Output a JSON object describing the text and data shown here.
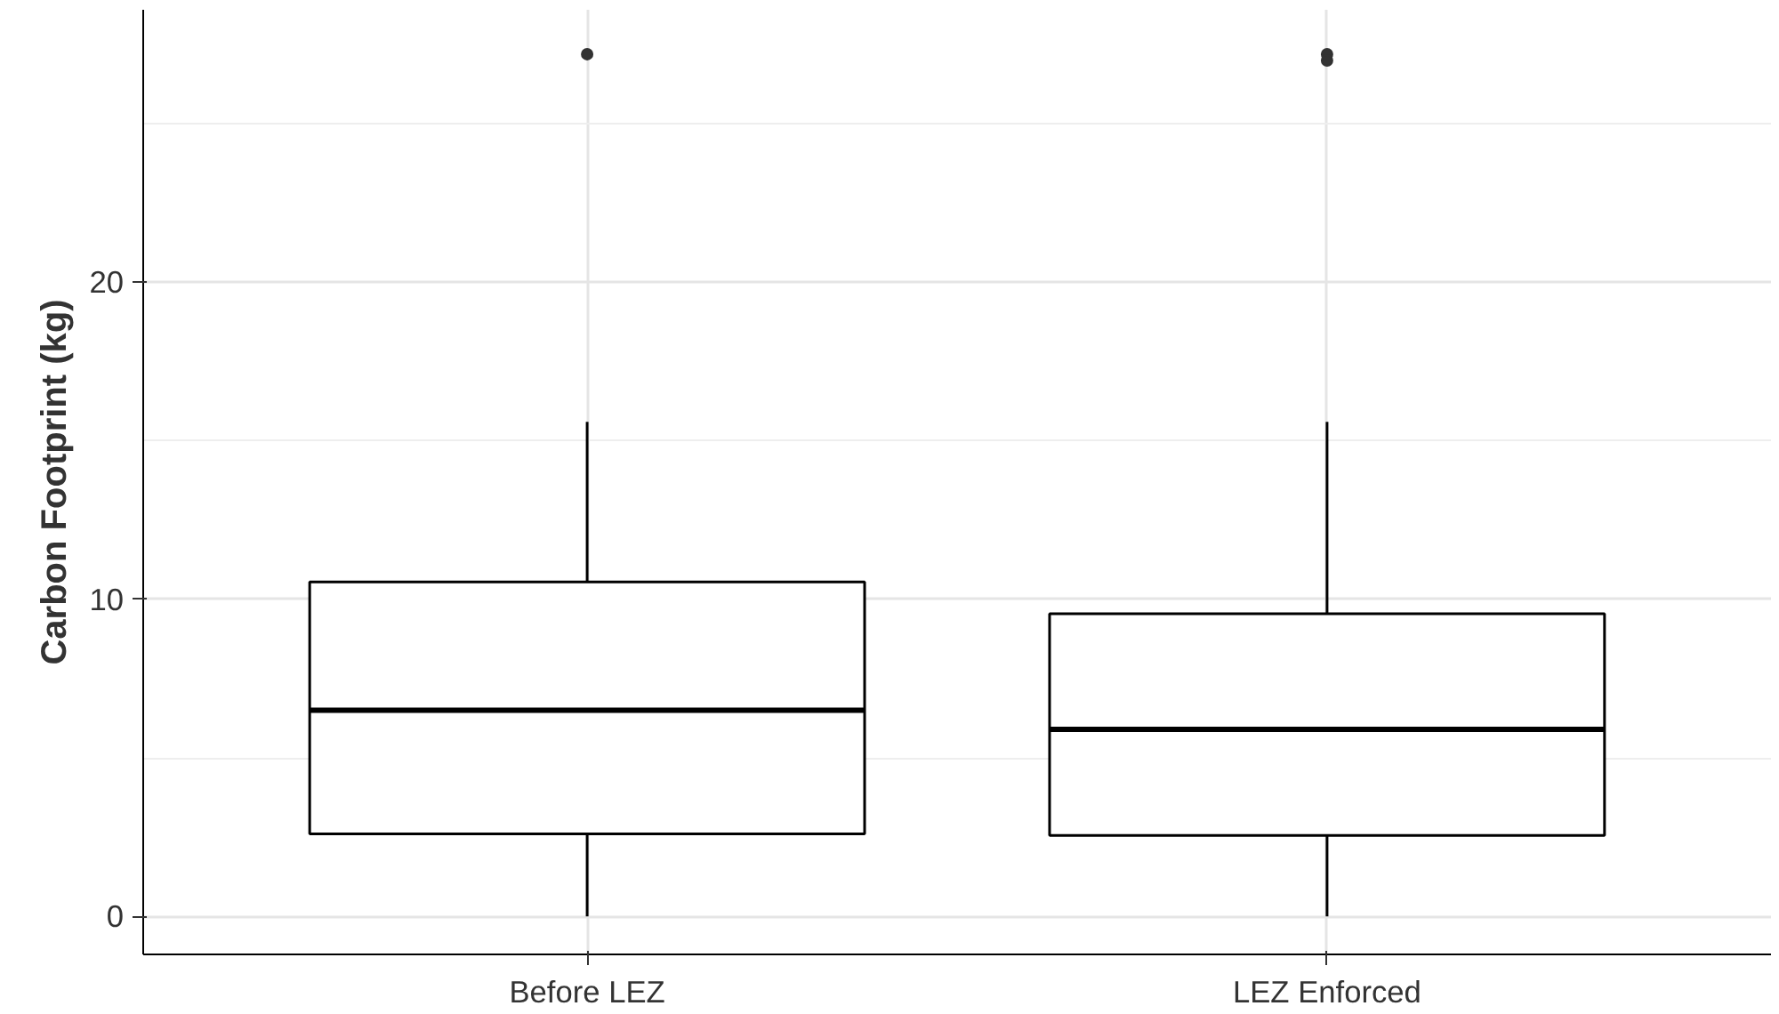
{
  "chart_data": {
    "type": "box",
    "ylabel": "Carbon Footprint (kg)",
    "categories": [
      "Before LEZ",
      "LEZ Enforced"
    ],
    "boxes": [
      {
        "low": 0,
        "q1": 2.6,
        "median": 6.5,
        "q3": 10.55,
        "high": 15.6,
        "outliers": [
          27.2
        ]
      },
      {
        "low": 0,
        "q1": 2.55,
        "median": 5.9,
        "q3": 9.55,
        "high": 15.6,
        "outliers": [
          27.2,
          27.0
        ]
      }
    ],
    "ylim": [
      -1.2,
      28.6
    ],
    "yticks": [
      0,
      10,
      20
    ],
    "grid": true
  }
}
